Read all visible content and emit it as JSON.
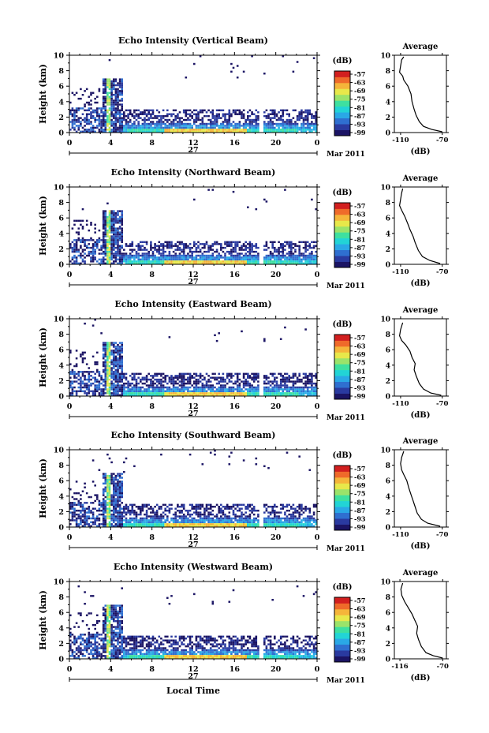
{
  "figure": {
    "xlabel": "Local Time",
    "colormap": [
      "#1b1464",
      "#2a3aa0",
      "#2f6fd0",
      "#2aa8e6",
      "#22d4d6",
      "#3ee0a0",
      "#9be36a",
      "#e8e84a",
      "#f5b53a",
      "#ef6a2a",
      "#d21f1f"
    ],
    "colors": {
      "avg_line": "#000000",
      "axis": "#000000"
    }
  },
  "chart_data": [
    {
      "type": "heatmap",
      "title": "Echo Intensity (Vertical Beam)",
      "ylabel": "Height (km)",
      "xticks": [
        "0",
        "4",
        "8",
        "12",
        "16",
        "20",
        "0"
      ],
      "yticks": [
        "0",
        "2",
        "4",
        "6",
        "8",
        "10"
      ],
      "xlim": [
        0,
        24
      ],
      "ylim": [
        0,
        10
      ],
      "day_label": "27",
      "month_label": "Mar 2011",
      "colorbar": {
        "label": "(dB)",
        "ticks": [
          "-57",
          "-63",
          "-69",
          "-75",
          "-81",
          "-87",
          "-93",
          "-99"
        ]
      },
      "avg_panel": {
        "title": "Average",
        "xlabel": "(dB)",
        "xticks": [
          "-110",
          "-70"
        ],
        "yticks": [
          "0",
          "2",
          "4",
          "6",
          "8",
          "10"
        ],
        "xlim": [
          -116,
          -66
        ],
        "profile": [
          [
            -70,
            0.1
          ],
          [
            -80,
            0.4
          ],
          [
            -88,
            0.8
          ],
          [
            -92,
            1.4
          ],
          [
            -95,
            2.2
          ],
          [
            -97,
            3.0
          ],
          [
            -99,
            4.0
          ],
          [
            -100,
            5.0
          ],
          [
            -103,
            6.0
          ],
          [
            -107,
            6.8
          ],
          [
            -108,
            7.3
          ],
          [
            -111,
            7.8
          ],
          [
            -110,
            8.6
          ],
          [
            -109,
            9.4
          ],
          [
            -107,
            9.8
          ]
        ]
      }
    },
    {
      "type": "heatmap",
      "title": "Echo Intensity (Northward Beam)",
      "ylabel": "Height (km)",
      "xticks": [
        "0",
        "4",
        "8",
        "12",
        "16",
        "20",
        "0"
      ],
      "yticks": [
        "0",
        "2",
        "4",
        "6",
        "8",
        "10"
      ],
      "xlim": [
        0,
        24
      ],
      "ylim": [
        0,
        10
      ],
      "day_label": "27",
      "month_label": "Mar 2011",
      "colorbar": {
        "label": "(dB)",
        "ticks": [
          "-57",
          "-63",
          "-69",
          "-75",
          "-81",
          "-87",
          "-93",
          "-99"
        ]
      },
      "avg_panel": {
        "title": "Average",
        "xlabel": "(dB)",
        "xticks": [
          "-110",
          "-70"
        ],
        "yticks": [
          "0",
          "2",
          "4",
          "6",
          "8",
          "10"
        ],
        "xlim": [
          -116,
          -66
        ],
        "profile": [
          [
            -72,
            0.1
          ],
          [
            -82,
            0.5
          ],
          [
            -89,
            1.0
          ],
          [
            -93,
            1.8
          ],
          [
            -96,
            2.8
          ],
          [
            -98,
            3.6
          ],
          [
            -101,
            4.5
          ],
          [
            -103,
            5.2
          ],
          [
            -106,
            6.2
          ],
          [
            -109,
            7.0
          ],
          [
            -111,
            7.6
          ],
          [
            -110,
            8.4
          ],
          [
            -109,
            9.2
          ],
          [
            -108,
            9.8
          ]
        ]
      }
    },
    {
      "type": "heatmap",
      "title": "Echo Intensity (Eastward Beam)",
      "ylabel": "Height (km)",
      "xticks": [
        "0",
        "4",
        "8",
        "12",
        "16",
        "20",
        "0"
      ],
      "yticks": [
        "0",
        "2",
        "4",
        "6",
        "8",
        "10"
      ],
      "xlim": [
        0,
        24
      ],
      "ylim": [
        0,
        10
      ],
      "day_label": "27",
      "month_label": "Mar 2011",
      "colorbar": {
        "label": "(dB)",
        "ticks": [
          "-57",
          "-63",
          "-69",
          "-75",
          "-81",
          "-87",
          "-93",
          "-99"
        ]
      },
      "avg_panel": {
        "title": "Average",
        "xlabel": "(dB)",
        "xticks": [
          "-110",
          "-70"
        ],
        "yticks": [
          "0",
          "2",
          "4",
          "6",
          "8",
          "10"
        ],
        "xlim": [
          -116,
          -66
        ],
        "profile": [
          [
            -71,
            0.1
          ],
          [
            -81,
            0.4
          ],
          [
            -88,
            0.9
          ],
          [
            -92,
            1.6
          ],
          [
            -95,
            2.6
          ],
          [
            -97,
            3.4
          ],
          [
            -96,
            4.2
          ],
          [
            -99,
            5.0
          ],
          [
            -101,
            5.8
          ],
          [
            -105,
            6.6
          ],
          [
            -109,
            7.2
          ],
          [
            -111,
            7.8
          ],
          [
            -110,
            8.6
          ],
          [
            -108,
            9.5
          ]
        ]
      }
    },
    {
      "type": "heatmap",
      "title": "Echo Intensity (Southward Beam)",
      "ylabel": "Height (km)",
      "xticks": [
        "0",
        "4",
        "8",
        "12",
        "16",
        "20",
        "0"
      ],
      "yticks": [
        "0",
        "2",
        "4",
        "6",
        "8",
        "10"
      ],
      "xlim": [
        0,
        24
      ],
      "ylim": [
        0,
        10
      ],
      "day_label": "27",
      "month_label": "Mar 2011",
      "colorbar": {
        "label": "(dB)",
        "ticks": [
          "-57",
          "-63",
          "-69",
          "-75",
          "-81",
          "-87",
          "-93",
          "-99"
        ]
      },
      "avg_panel": {
        "title": "Average",
        "xlabel": "(dB)",
        "xticks": [
          "-110",
          "-70"
        ],
        "yticks": [
          "0",
          "2",
          "4",
          "6",
          "8",
          "10"
        ],
        "xlim": [
          -116,
          -66
        ],
        "profile": [
          [
            -72,
            0.1
          ],
          [
            -84,
            0.5
          ],
          [
            -90,
            1.0
          ],
          [
            -94,
            1.8
          ],
          [
            -96,
            2.6
          ],
          [
            -98,
            3.4
          ],
          [
            -100,
            4.2
          ],
          [
            -102,
            5.0
          ],
          [
            -104,
            6.0
          ],
          [
            -107,
            6.8
          ],
          [
            -109,
            7.4
          ],
          [
            -110,
            8.2
          ],
          [
            -109,
            9.0
          ],
          [
            -107,
            9.8
          ]
        ]
      }
    },
    {
      "type": "heatmap",
      "title": "Echo Intensity (Westward Beam)",
      "ylabel": "Height (km)",
      "xticks": [
        "0",
        "4",
        "8",
        "12",
        "16",
        "20",
        "0"
      ],
      "yticks": [
        "0",
        "2",
        "4",
        "6",
        "8",
        "10"
      ],
      "xlim": [
        0,
        24
      ],
      "ylim": [
        0,
        10
      ],
      "day_label": "27",
      "month_label": "Mar 2011",
      "colorbar": {
        "label": "(dB)",
        "ticks": [
          "-57",
          "-63",
          "-69",
          "-75",
          "-81",
          "-87",
          "-93",
          "-99"
        ]
      },
      "avg_panel": {
        "title": "Average",
        "xlabel": "(dB)",
        "xticks": [
          "-116",
          "-70"
        ],
        "yticks": [
          "0",
          "2",
          "4",
          "6",
          "8",
          "10"
        ],
        "xlim": [
          -122,
          -66
        ],
        "profile": [
          [
            -70,
            0.1
          ],
          [
            -80,
            0.4
          ],
          [
            -88,
            0.8
          ],
          [
            -93,
            1.6
          ],
          [
            -96,
            2.5
          ],
          [
            -98,
            3.3
          ],
          [
            -97,
            4.2
          ],
          [
            -100,
            5.0
          ],
          [
            -103,
            5.8
          ],
          [
            -107,
            6.6
          ],
          [
            -111,
            7.4
          ],
          [
            -114,
            8.2
          ],
          [
            -115,
            9.0
          ],
          [
            -113,
            9.8
          ]
        ]
      }
    }
  ]
}
